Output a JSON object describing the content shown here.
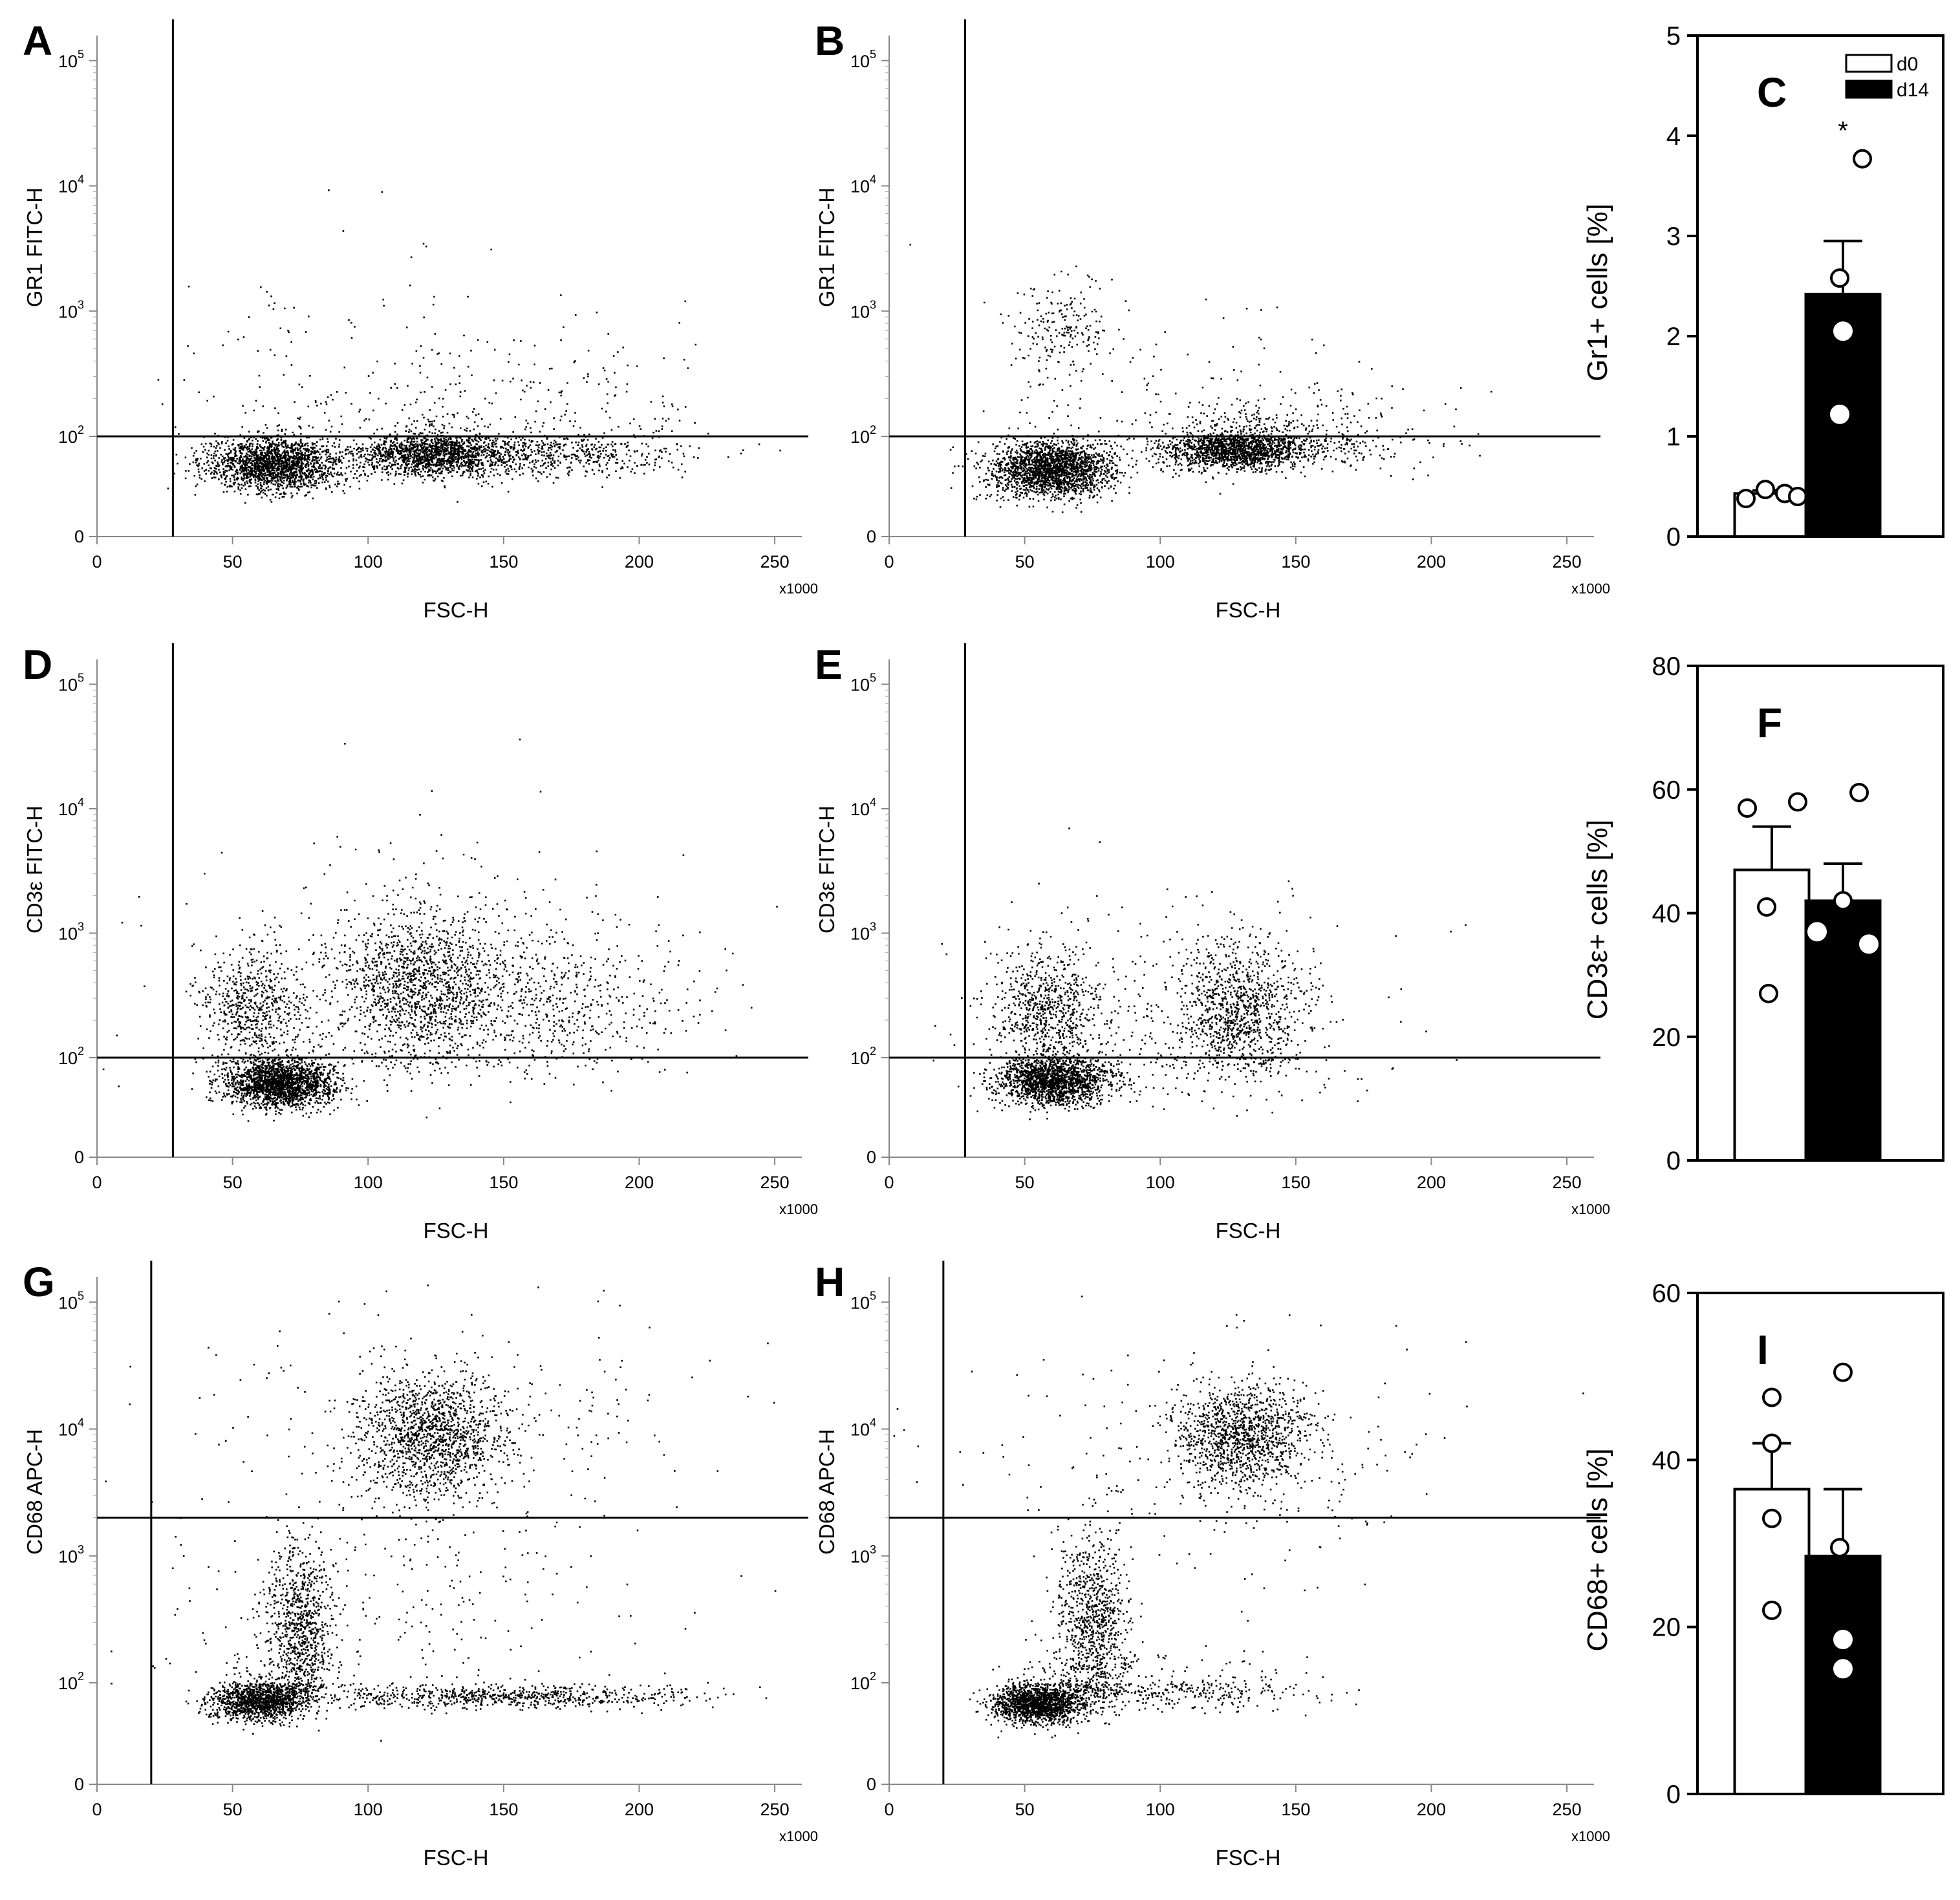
{
  "chart_data": [
    {
      "panel": "A",
      "type": "scatter",
      "xlabel": "FSC-H",
      "ylabel": "GR1 FITC-H",
      "x_ticks": [
        "0",
        "50",
        "100",
        "150",
        "200",
        "250"
      ],
      "x_multiplier": "x1000",
      "xlim": [
        0,
        260
      ],
      "y_ticks": [
        "0",
        "2",
        "3",
        "4",
        "5"
      ],
      "gate": {
        "x": 28,
        "y": 100
      },
      "populations": [
        {
          "cx": 65,
          "cy": 28,
          "sx": 12,
          "sy": 0.28,
          "n": 1900
        },
        {
          "cx": 123,
          "cy": 45,
          "sx": 14,
          "sy": 0.22,
          "n": 1300
        },
        {
          "cx": 160,
          "cy": 42,
          "sx": 28,
          "sy": 0.22,
          "n": 700
        },
        {
          "cx": 140,
          "cy": 150,
          "sx": 45,
          "sy": 0.35,
          "n": 320
        },
        {
          "cx": 65,
          "cy": 700,
          "sx": 8,
          "sy": 0.2,
          "n": 20
        },
        {
          "cx": 110,
          "cy": 250,
          "sx": 45,
          "sy": 0.8,
          "n": 70
        }
      ]
    },
    {
      "panel": "B",
      "type": "scatter",
      "xlabel": "FSC-H",
      "ylabel": "GR1 FITC-H",
      "x_ticks": [
        "0",
        "50",
        "100",
        "150",
        "200",
        "250"
      ],
      "x_multiplier": "x1000",
      "xlim": [
        0,
        260
      ],
      "y_ticks": [
        "0",
        "2",
        "3",
        "4",
        "5"
      ],
      "gate": {
        "x": 28,
        "y": 100
      },
      "populations": [
        {
          "cx": 60,
          "cy": 22,
          "sx": 11,
          "sy": 0.3,
          "n": 2100
        },
        {
          "cx": 128,
          "cy": 55,
          "sx": 13,
          "sy": 0.2,
          "n": 1500
        },
        {
          "cx": 150,
          "cy": 75,
          "sx": 25,
          "sy": 0.25,
          "n": 400
        },
        {
          "cx": 63,
          "cy": 700,
          "sx": 9,
          "sy": 0.18,
          "n": 200
        },
        {
          "cx": 110,
          "cy": 200,
          "sx": 40,
          "sy": 0.5,
          "n": 120
        }
      ]
    },
    {
      "panel": "C",
      "type": "bar",
      "ylabel": "Gr1+ cells [%]",
      "ylim": [
        0,
        5
      ],
      "y_ticks": [
        "0",
        "1",
        "2",
        "3",
        "4",
        "5"
      ],
      "categories": [
        "d0",
        "d14"
      ],
      "values": [
        0.43,
        2.42
      ],
      "error": [
        0.03,
        0.53
      ],
      "points": [
        [
          0.38,
          0.47,
          0.43,
          0.4
        ],
        [
          3.77,
          2.58,
          2.05,
          1.22
        ]
      ],
      "significance": "*",
      "legend": [
        "d0",
        "d14"
      ]
    },
    {
      "panel": "D",
      "type": "scatter",
      "xlabel": "FSC-H",
      "ylabel": "CD3ε FITC-H",
      "x_ticks": [
        "0",
        "50",
        "100",
        "150",
        "200",
        "250"
      ],
      "x_multiplier": "x1000",
      "xlim": [
        0,
        260
      ],
      "y_ticks": [
        "0",
        "2",
        "3",
        "4",
        "5"
      ],
      "gate": {
        "x": 28,
        "y": 100
      },
      "populations": [
        {
          "cx": 68,
          "cy": 30,
          "sx": 10,
          "sy": 0.25,
          "n": 2000
        },
        {
          "cx": 58,
          "cy": 250,
          "sx": 10,
          "sy": 0.25,
          "n": 650
        },
        {
          "cx": 118,
          "cy": 380,
          "sx": 15,
          "sy": 0.3,
          "n": 1300
        },
        {
          "cx": 165,
          "cy": 280,
          "sx": 25,
          "sy": 0.25,
          "n": 500
        },
        {
          "cx": 130,
          "cy": 400,
          "sx": 45,
          "sy": 0.6,
          "n": 450
        }
      ]
    },
    {
      "panel": "E",
      "type": "scatter",
      "xlabel": "FSC-H",
      "ylabel": "CD3ε FITC-H",
      "x_ticks": [
        "0",
        "50",
        "100",
        "150",
        "200",
        "250"
      ],
      "x_multiplier": "x1000",
      "xlim": [
        0,
        260
      ],
      "y_ticks": [
        "0",
        "2",
        "3",
        "4",
        "5"
      ],
      "gate": {
        "x": 28,
        "y": 100
      },
      "populations": [
        {
          "cx": 60,
          "cy": 35,
          "sx": 10,
          "sy": 0.25,
          "n": 1700
        },
        {
          "cx": 58,
          "cy": 250,
          "sx": 10,
          "sy": 0.25,
          "n": 700
        },
        {
          "cx": 128,
          "cy": 250,
          "sx": 12,
          "sy": 0.28,
          "n": 1000
        },
        {
          "cx": 100,
          "cy": 150,
          "sx": 40,
          "sy": 0.55,
          "n": 400
        }
      ]
    },
    {
      "panel": "F",
      "type": "bar",
      "ylabel": "CD3ε+ cells [%]",
      "ylim": [
        0,
        80
      ],
      "y_ticks": [
        "0",
        "20",
        "40",
        "60",
        "80"
      ],
      "categories": [
        "d0",
        "d14"
      ],
      "values": [
        47,
        42
      ],
      "error": [
        7,
        6
      ],
      "points": [
        [
          57,
          27,
          41,
          58
        ],
        [
          59.5,
          37,
          35,
          42
        ]
      ]
    },
    {
      "panel": "G",
      "type": "scatter",
      "xlabel": "FSC-H",
      "ylabel": "CD68 APC-H",
      "x_ticks": [
        "0",
        "50",
        "100",
        "150",
        "200",
        "250"
      ],
      "x_multiplier": "x1000",
      "xlim": [
        0,
        260
      ],
      "y_ticks": [
        "0",
        "2",
        "3",
        "4",
        "5"
      ],
      "gate": {
        "x": 20,
        "y": 2000
      },
      "populations": [
        {
          "cx": 60,
          "cy": 45,
          "sx": 9,
          "sy": 0.2,
          "n": 1300
        },
        {
          "cx": 75,
          "cy": 250,
          "sx": 6,
          "sy": 0.35,
          "n": 900
        },
        {
          "cx": 123,
          "cy": 9000,
          "sx": 13,
          "sy": 0.25,
          "n": 1400
        },
        {
          "cx": 150,
          "cy": 55,
          "sx": 35,
          "sy": 0.12,
          "n": 700
        },
        {
          "cx": 130,
          "cy": 10000,
          "sx": 50,
          "sy": 0.5,
          "n": 250
        },
        {
          "cx": 110,
          "cy": 300,
          "sx": 50,
          "sy": 0.5,
          "n": 250
        }
      ]
    },
    {
      "panel": "H",
      "type": "scatter",
      "xlabel": "FSC-H",
      "ylabel": "CD68 APC-H",
      "x_ticks": [
        "0",
        "50",
        "100",
        "150",
        "200",
        "250"
      ],
      "x_multiplier": "x1000",
      "xlim": [
        0,
        260
      ],
      "y_ticks": [
        "0",
        "2",
        "3",
        "4",
        "5"
      ],
      "gate": {
        "x": 20,
        "y": 2000
      },
      "populations": [
        {
          "cx": 55,
          "cy": 40,
          "sx": 8,
          "sy": 0.2,
          "n": 1600
        },
        {
          "cx": 75,
          "cy": 250,
          "sx": 7,
          "sy": 0.4,
          "n": 1000
        },
        {
          "cx": 130,
          "cy": 9000,
          "sx": 12,
          "sy": 0.2,
          "n": 1200
        },
        {
          "cx": 110,
          "cy": 70,
          "sx": 25,
          "sy": 0.2,
          "n": 300
        },
        {
          "cx": 120,
          "cy": 6000,
          "sx": 45,
          "sy": 0.45,
          "n": 250
        }
      ]
    },
    {
      "panel": "I",
      "type": "bar",
      "ylabel": "CD68+ cells [%]",
      "ylim": [
        0,
        60
      ],
      "y_ticks": [
        "0",
        "20",
        "40",
        "60"
      ],
      "categories": [
        "d0",
        "d14"
      ],
      "values": [
        36.5,
        28.5
      ],
      "error": [
        5.5,
        8
      ],
      "points": [
        [
          47.5,
          42,
          33,
          22
        ],
        [
          50.5,
          29.5,
          18.5,
          15
        ]
      ]
    }
  ]
}
